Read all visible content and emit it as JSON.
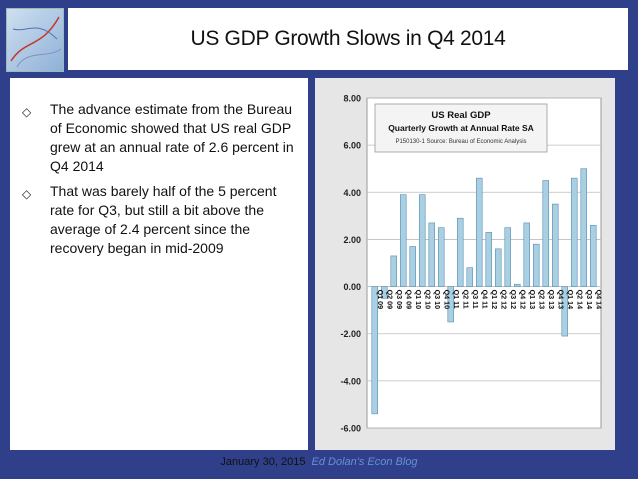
{
  "slide": {
    "title": "US GDP Growth Slows in Q4 2014",
    "bullets": [
      "The advance estimate from the Bureau of Economic showed that US real GDP grew at an annual rate of 2.6 percent in Q4 2014",
      "That was barely half of the 5 percent rate for Q3, but still a bit above the average of 2.4 percent since the recovery began in mid-2009"
    ],
    "footer_date": "January 30, 2015",
    "footer_blog": "Ed Dolan's Econ Blog",
    "colors": {
      "background": "#2f3f8a",
      "bar": "#a9cfe3",
      "bar_stroke": "#5a8fb0"
    }
  },
  "chart_data": {
    "type": "bar",
    "title": "US  Real GDP",
    "subtitle": "Quarterly Growth at Annual Rate SA",
    "source": "P150130-1 Source: Bureau of Economic Analysis",
    "xlabel": "",
    "ylabel": "",
    "ylim": [
      -6,
      8
    ],
    "yticks": [
      "8.00",
      "6.00",
      "4.00",
      "2.00",
      "0.00",
      "-2.00",
      "-4.00",
      "-6.00"
    ],
    "yticks_values": [
      8,
      6,
      4,
      2,
      0,
      -2,
      -4,
      -6
    ],
    "grid": true,
    "categories": [
      "Q1 09",
      "Q2 09",
      "Q3 09",
      "Q4 09",
      "Q1 10",
      "Q2 10",
      "Q3 10",
      "Q4 10",
      "Q1 11",
      "Q2 11",
      "Q3 11",
      "Q4 11",
      "Q1 12",
      "Q2 12",
      "Q3 12",
      "Q4 12",
      "Q1 13",
      "Q2 13",
      "Q3 13",
      "Q4 13",
      "Q1 14",
      "Q2 14",
      "Q3 14",
      "Q4 14"
    ],
    "values": [
      -5.4,
      -0.5,
      1.3,
      3.9,
      1.7,
      3.9,
      2.7,
      2.5,
      -1.5,
      2.9,
      0.8,
      4.6,
      2.3,
      1.6,
      2.5,
      0.1,
      2.7,
      1.8,
      4.5,
      3.5,
      -2.1,
      4.6,
      5.0,
      2.6
    ]
  }
}
